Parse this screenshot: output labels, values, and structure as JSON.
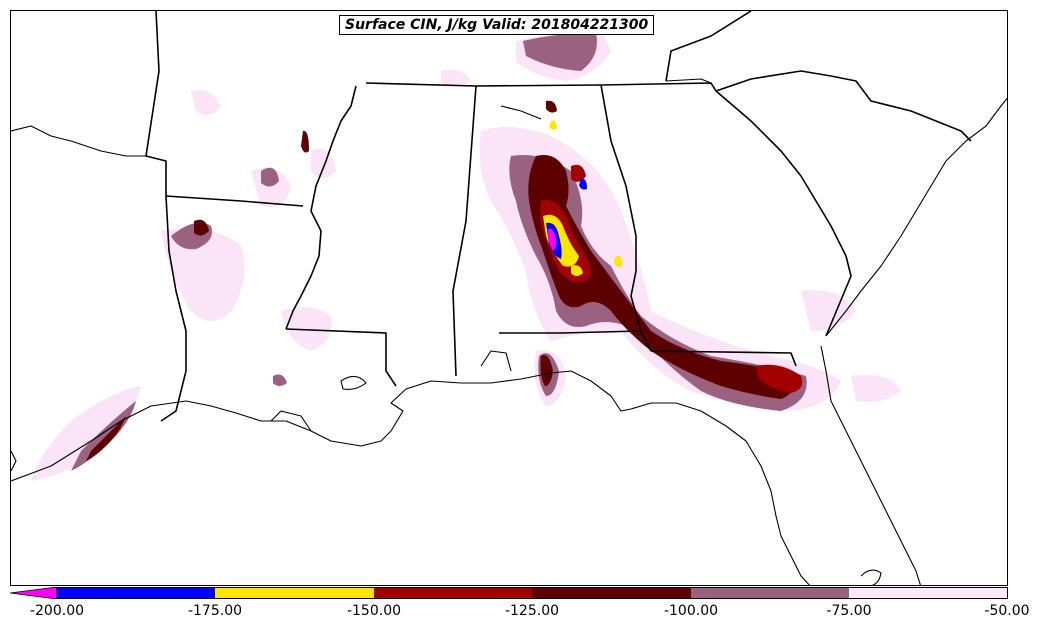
{
  "title": "Surface CIN, J/kg Valid: 201804221300",
  "colorbar": {
    "tick_labels": [
      "-200.00",
      "-175.00",
      "-150.00",
      "-125.00",
      "-100.00",
      "-75.00",
      "-50.00"
    ],
    "colors": [
      "#ff00ff",
      "#0000ff",
      "#ffe600",
      "#a30000",
      "#5c0000",
      "#9b6180",
      "#ffe8fb"
    ]
  }
}
